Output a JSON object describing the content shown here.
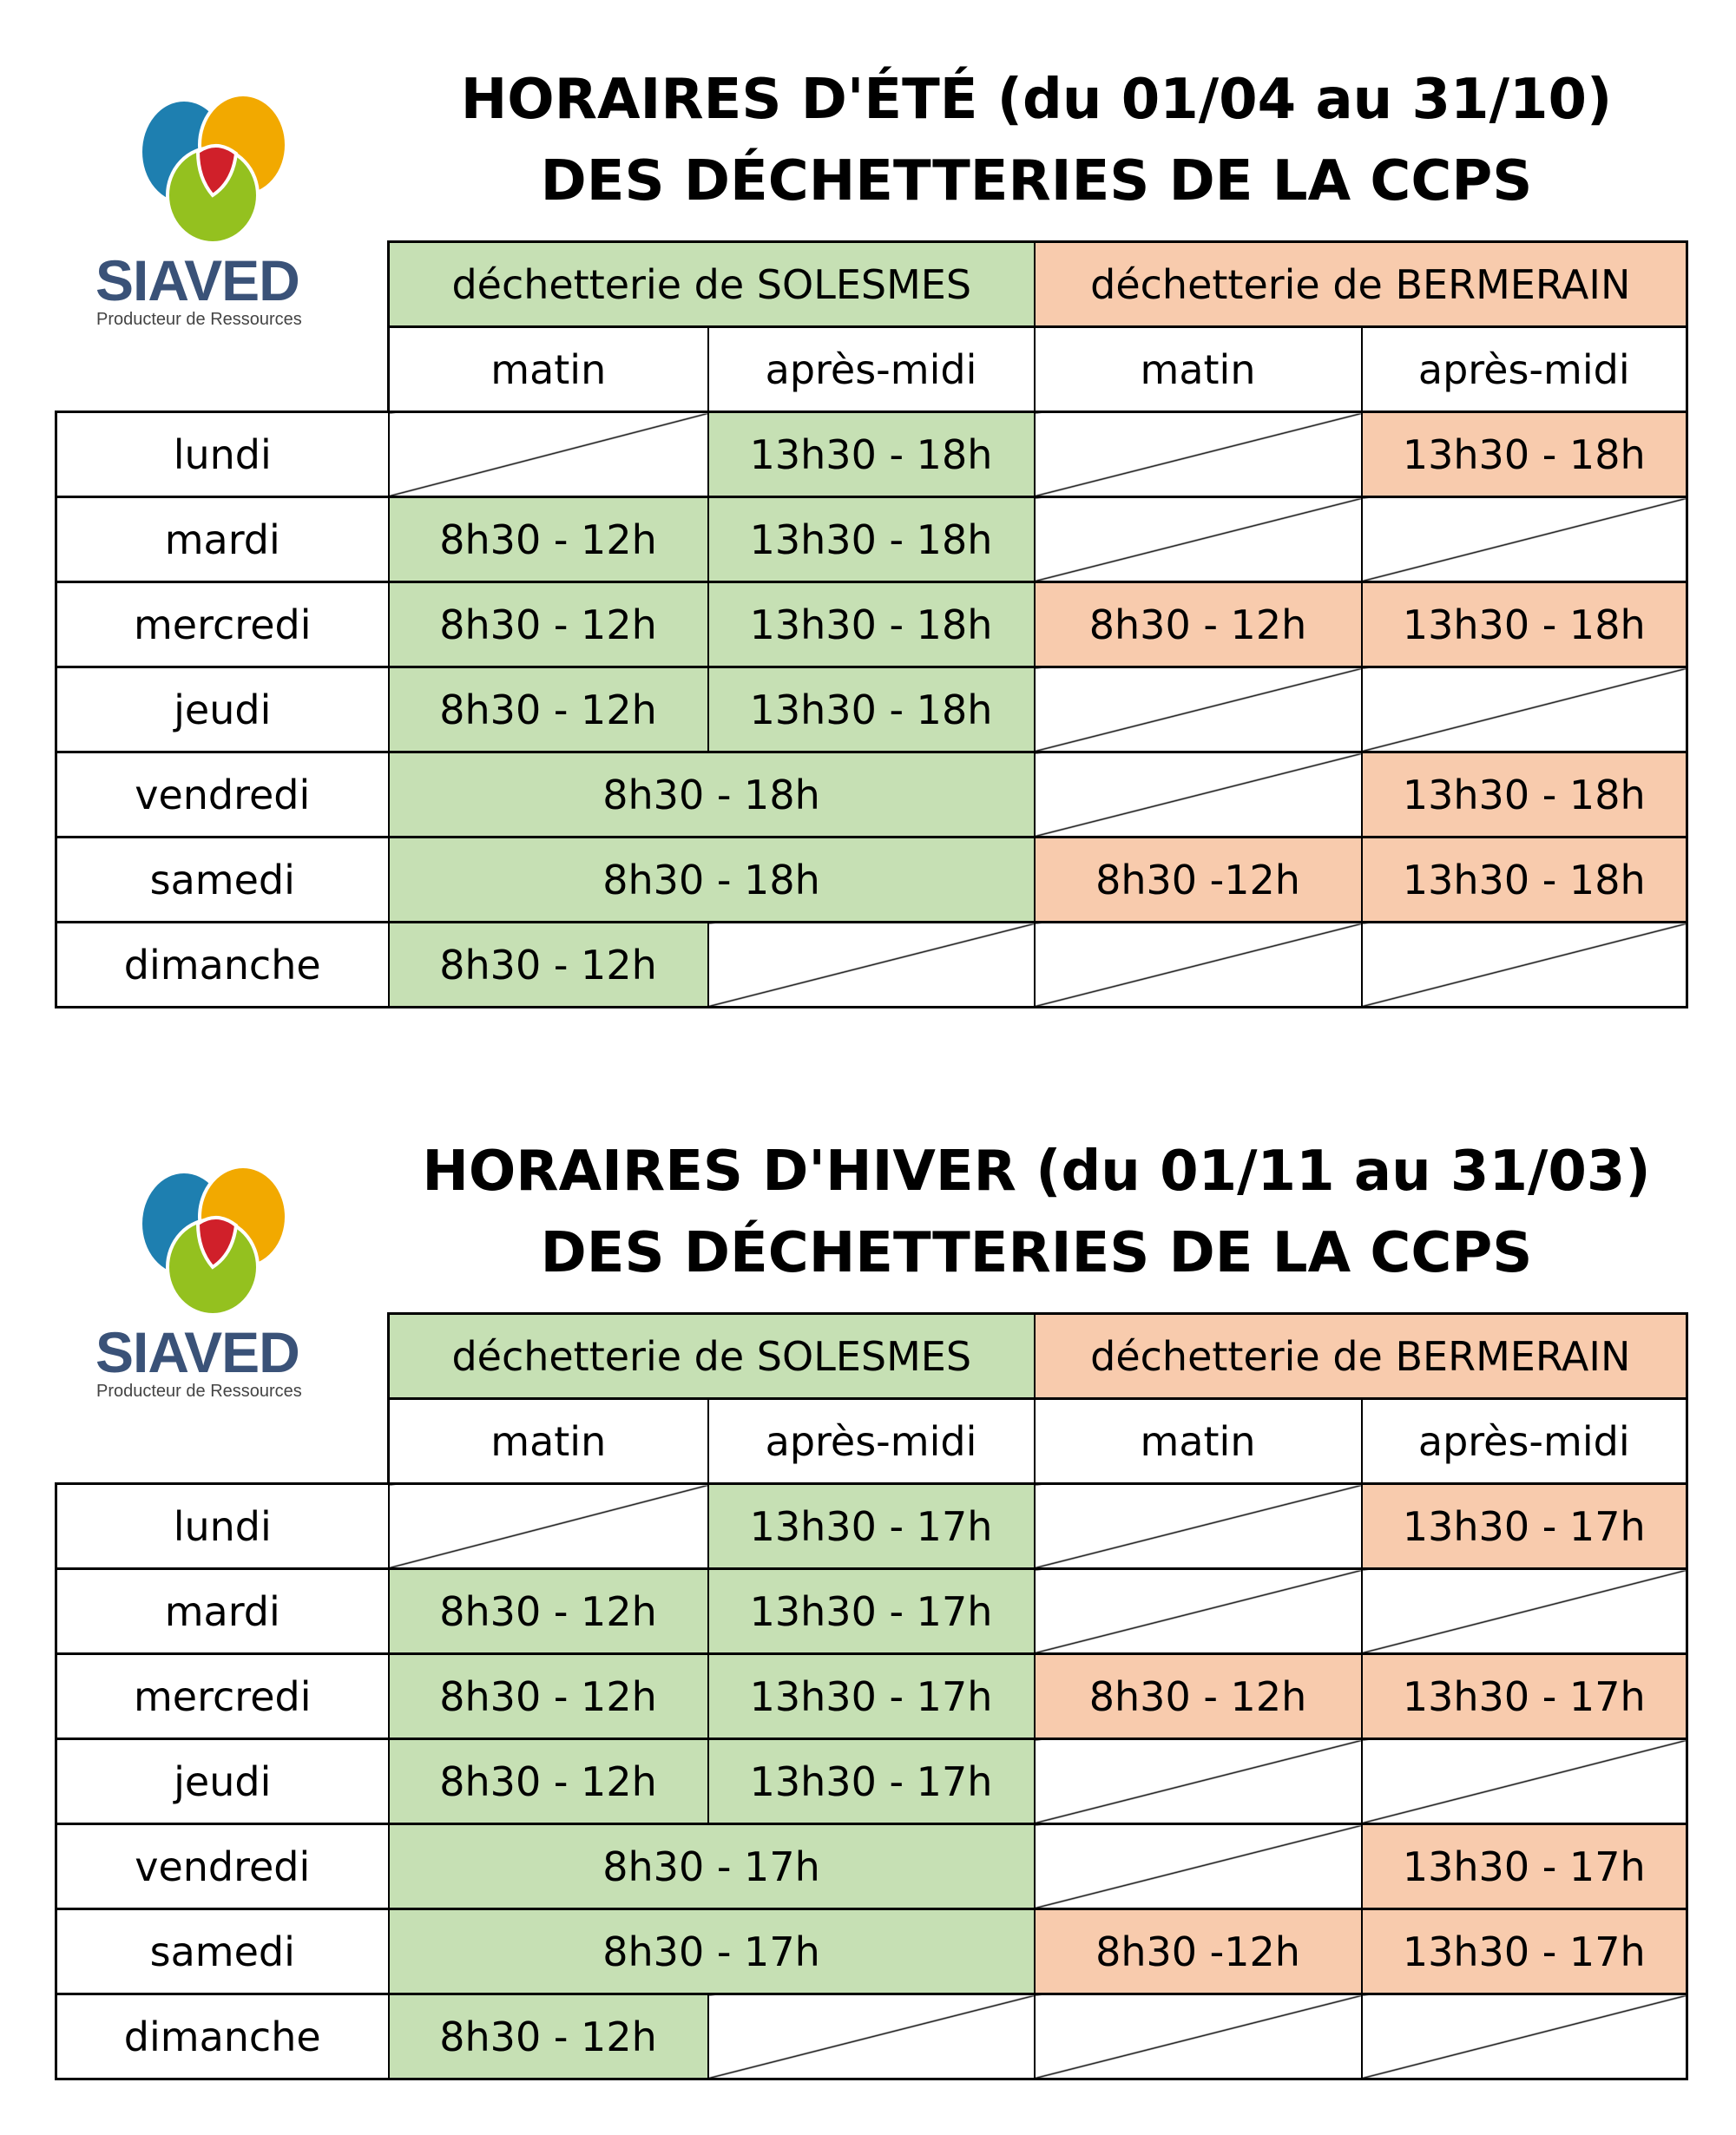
{
  "logo": {
    "name": "SIAVED",
    "tagline": "Producteur de Ressources"
  },
  "colors": {
    "solesmes": "#c6e0b4",
    "bermerain": "#f8cbad"
  },
  "sections": [
    {
      "title_line1": "HORAIRES D'ÉTÉ (du 01/04 au 31/10)",
      "title_line2": "DES DÉCHETTERIES DE LA CCPS",
      "sites": [
        "déchetterie de SOLESMES",
        "déchetterie de BERMERAIN"
      ],
      "periods": [
        "matin",
        "après-midi",
        "matin",
        "après-midi"
      ],
      "rows": [
        {
          "day": "lundi",
          "cells": [
            {
              "text": ""
            },
            {
              "text": "13h30 - 18h",
              "site": "g"
            },
            {
              "text": ""
            },
            {
              "text": "13h30 - 18h",
              "site": "o"
            }
          ]
        },
        {
          "day": "mardi",
          "cells": [
            {
              "text": "8h30 - 12h",
              "site": "g"
            },
            {
              "text": "13h30 - 18h",
              "site": "g"
            },
            {
              "text": ""
            },
            {
              "text": ""
            }
          ]
        },
        {
          "day": "mercredi",
          "cells": [
            {
              "text": "8h30 - 12h",
              "site": "g"
            },
            {
              "text": "13h30 - 18h",
              "site": "g"
            },
            {
              "text": "8h30 - 12h",
              "site": "o"
            },
            {
              "text": "13h30 - 18h",
              "site": "o"
            }
          ]
        },
        {
          "day": "jeudi",
          "cells": [
            {
              "text": "8h30 - 12h",
              "site": "g"
            },
            {
              "text": "13h30 - 18h",
              "site": "g"
            },
            {
              "text": ""
            },
            {
              "text": ""
            }
          ]
        },
        {
          "day": "vendredi",
          "cells": [
            {
              "text": "8h30 - 18h",
              "site": "g",
              "span": 2
            },
            {
              "text": ""
            },
            {
              "text": "13h30 - 18h",
              "site": "o"
            }
          ]
        },
        {
          "day": "samedi",
          "cells": [
            {
              "text": "8h30 - 18h",
              "site": "g",
              "span": 2
            },
            {
              "text": "8h30 -12h",
              "site": "o"
            },
            {
              "text": "13h30 - 18h",
              "site": "o"
            }
          ]
        },
        {
          "day": "dimanche",
          "cells": [
            {
              "text": "8h30 - 12h",
              "site": "g"
            },
            {
              "text": ""
            },
            {
              "text": ""
            },
            {
              "text": ""
            }
          ]
        }
      ]
    },
    {
      "title_line1": "HORAIRES D'HIVER (du 01/11 au 31/03)",
      "title_line2": "DES DÉCHETTERIES DE LA CCPS",
      "sites": [
        "déchetterie de SOLESMES",
        "déchetterie de BERMERAIN"
      ],
      "periods": [
        "matin",
        "après-midi",
        "matin",
        "après-midi"
      ],
      "rows": [
        {
          "day": "lundi",
          "cells": [
            {
              "text": ""
            },
            {
              "text": "13h30 - 17h",
              "site": "g"
            },
            {
              "text": ""
            },
            {
              "text": "13h30 - 17h",
              "site": "o"
            }
          ]
        },
        {
          "day": "mardi",
          "cells": [
            {
              "text": "8h30 - 12h",
              "site": "g"
            },
            {
              "text": "13h30 - 17h",
              "site": "g"
            },
            {
              "text": ""
            },
            {
              "text": ""
            }
          ]
        },
        {
          "day": "mercredi",
          "cells": [
            {
              "text": "8h30 - 12h",
              "site": "g"
            },
            {
              "text": "13h30 - 17h",
              "site": "g"
            },
            {
              "text": "8h30 - 12h",
              "site": "o"
            },
            {
              "text": "13h30 - 17h",
              "site": "o"
            }
          ]
        },
        {
          "day": "jeudi",
          "cells": [
            {
              "text": "8h30 - 12h",
              "site": "g"
            },
            {
              "text": "13h30 - 17h",
              "site": "g"
            },
            {
              "text": ""
            },
            {
              "text": ""
            }
          ]
        },
        {
          "day": "vendredi",
          "cells": [
            {
              "text": "8h30 - 17h",
              "site": "g",
              "span": 2
            },
            {
              "text": ""
            },
            {
              "text": "13h30 - 17h",
              "site": "o"
            }
          ]
        },
        {
          "day": "samedi",
          "cells": [
            {
              "text": "8h30 - 17h",
              "site": "g",
              "span": 2
            },
            {
              "text": "8h30 -12h",
              "site": "o"
            },
            {
              "text": "13h30 - 17h",
              "site": "o"
            }
          ]
        },
        {
          "day": "dimanche",
          "cells": [
            {
              "text": "8h30 - 12h",
              "site": "g"
            },
            {
              "text": ""
            },
            {
              "text": ""
            },
            {
              "text": ""
            }
          ]
        }
      ]
    }
  ]
}
